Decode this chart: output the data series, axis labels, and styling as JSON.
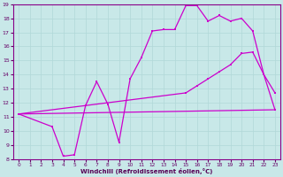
{
  "xlabel": "Windchill (Refroidissement éolien,°C)",
  "background_color": "#c8e8e8",
  "grid_color": "#b0d8d8",
  "line_color": "#cc00cc",
  "xlim": [
    -0.5,
    23.5
  ],
  "ylim": [
    8,
    19
  ],
  "xticks": [
    0,
    1,
    2,
    3,
    4,
    5,
    6,
    7,
    8,
    9,
    10,
    11,
    12,
    13,
    14,
    15,
    16,
    17,
    18,
    19,
    20,
    21,
    22,
    23
  ],
  "yticks": [
    8,
    9,
    10,
    11,
    12,
    13,
    14,
    15,
    16,
    17,
    18,
    19
  ],
  "line1_x": [
    0,
    23
  ],
  "line1_y": [
    11.2,
    11.5
  ],
  "line2_x": [
    0,
    3,
    4,
    5,
    6,
    7,
    8,
    9,
    10,
    11,
    12,
    13,
    14,
    15,
    16,
    17,
    18,
    19,
    20,
    21,
    22,
    23
  ],
  "line2_y": [
    11.2,
    10.3,
    8.2,
    8.3,
    11.8,
    13.5,
    11.9,
    9.2,
    13.7,
    15.2,
    17.1,
    17.2,
    17.2,
    18.9,
    18.9,
    17.8,
    18.2,
    17.8,
    18.0,
    17.1,
    14.0,
    12.7
  ],
  "line3_x": [
    0,
    15,
    16,
    17,
    18,
    19,
    20,
    21,
    22,
    23
  ],
  "line3_y": [
    11.2,
    12.7,
    13.2,
    13.7,
    14.2,
    14.7,
    15.5,
    15.6,
    14.0,
    11.5
  ],
  "marker_x2": [
    0,
    3,
    4,
    5,
    6,
    7,
    8,
    9,
    10,
    11,
    12,
    13,
    14,
    15,
    16,
    17,
    18,
    19,
    20,
    21,
    22,
    23
  ],
  "marker_y2": [
    11.2,
    10.3,
    8.2,
    8.3,
    11.8,
    13.5,
    11.9,
    9.2,
    13.7,
    15.2,
    17.1,
    17.2,
    17.2,
    18.9,
    18.9,
    17.8,
    18.2,
    17.8,
    18.0,
    17.1,
    14.0,
    12.7
  ],
  "marker_x3": [
    0,
    15,
    16,
    17,
    18,
    19,
    20,
    21,
    22,
    23
  ],
  "marker_y3": [
    11.2,
    12.7,
    13.2,
    13.7,
    14.2,
    14.7,
    15.5,
    15.6,
    14.0,
    11.5
  ]
}
